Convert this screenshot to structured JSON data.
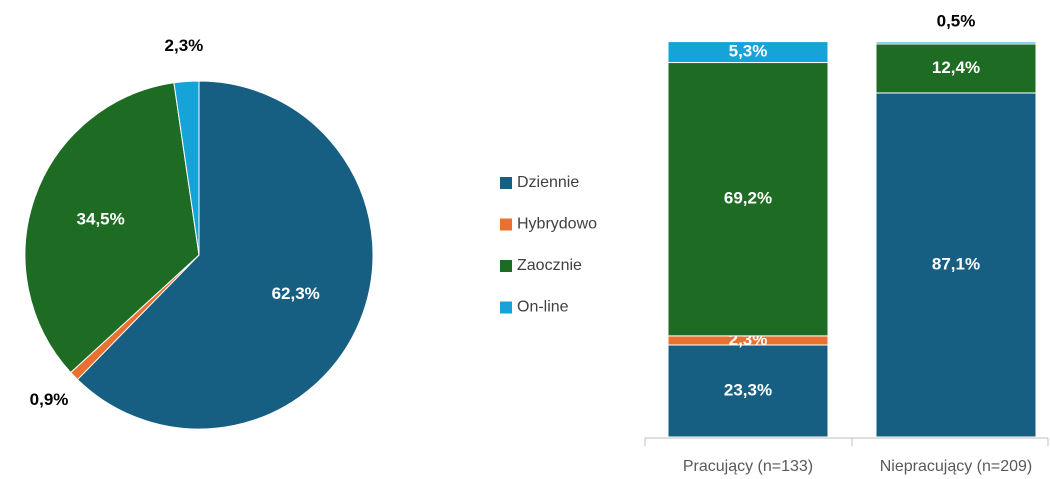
{
  "chart_data": [
    {
      "type": "pie",
      "values": [
        62.3,
        0.9,
        34.5,
        2.3
      ],
      "value_labels": [
        "62,3%",
        "0,9%",
        "34,5%",
        "2,3%"
      ],
      "colors": [
        "#175f82",
        "#e87030",
        "#1e6b24",
        "#16a3d8"
      ]
    },
    {
      "type": "bar",
      "stacked": true,
      "categories": [
        "Pracujący (n=133)",
        "Niepracujący (n=209)"
      ],
      "ylim": [
        0,
        100
      ],
      "series": [
        {
          "name": "Dziennie",
          "color": "#175f82",
          "values": [
            23.3,
            87.1
          ],
          "value_labels": [
            "23,3%",
            "87,1%"
          ]
        },
        {
          "name": "Hybrydowo",
          "color": "#e87030",
          "values": [
            2.3,
            null
          ],
          "value_labels": [
            "2,3%",
            null
          ]
        },
        {
          "name": "Zaocznie",
          "color": "#1e6b24",
          "values": [
            69.2,
            12.4
          ],
          "value_labels": [
            "69,2%",
            "12,4%"
          ]
        },
        {
          "name": "On-line",
          "color": "#16a3d8",
          "values": [
            5.3,
            0.5
          ],
          "value_labels": [
            "5,3%",
            "0,5%"
          ]
        }
      ]
    }
  ]
}
